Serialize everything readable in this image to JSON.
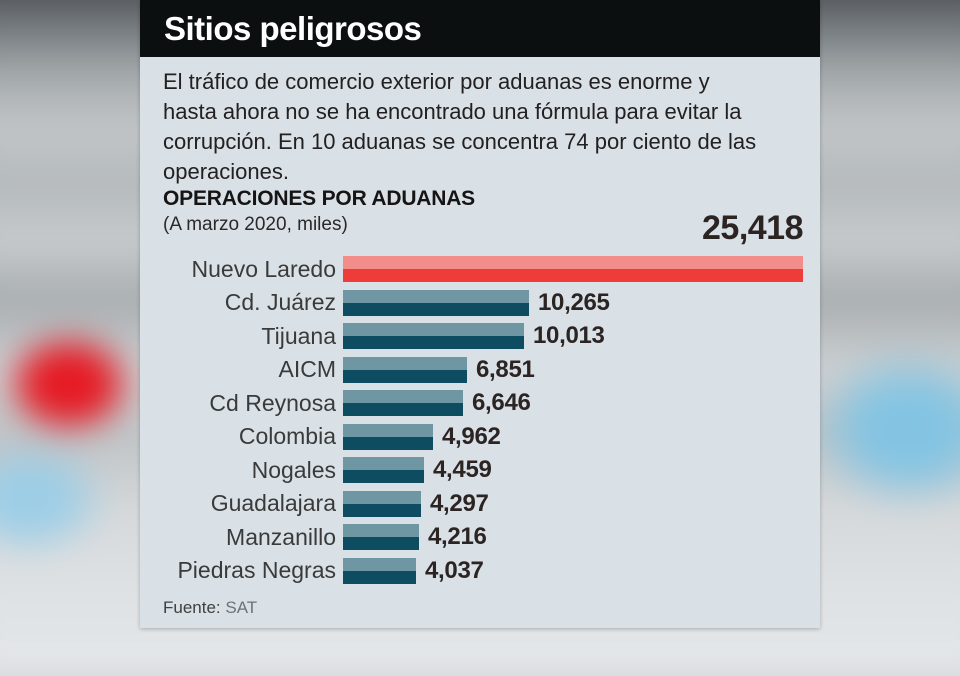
{
  "header": {
    "title": "Sitios peligrosos"
  },
  "intro": {
    "text": "El tráfico de comercio exterior por aduanas es enorme y hasta ahora no se ha encontrado una fórmula para evitar la corrupción. En 10 aduanas se concentra 74 por ciento de las operaciones."
  },
  "chart": {
    "title": "OPERACIONES POR ADUANAS",
    "subtitle": "(A marzo 2020, miles)",
    "max_value_label": "25,418"
  },
  "footer": {
    "source_label": "Fuente:",
    "source": "SAT"
  },
  "colors": {
    "highlight_top": "#F28D89",
    "highlight_bottom": "#EE3C3A",
    "bar_top": "#6E96A3",
    "bar_bottom": "#0E4D61",
    "card_bg": "#D9E1E6",
    "header_bg": "#0B0F10"
  },
  "chart_data": {
    "type": "bar",
    "orientation": "horizontal",
    "title": "OPERACIONES POR ADUANAS",
    "subtitle": "(A marzo 2020, miles)",
    "categories": [
      "Nuevo Laredo",
      "Cd. Juárez",
      "Tijuana",
      "AICM",
      "Cd Reynosa",
      "Colombia",
      "Nogales",
      "Guadalajara",
      "Manzanillo",
      "Piedras Negras"
    ],
    "values": [
      25418,
      10265,
      10013,
      6851,
      6646,
      4962,
      4459,
      4297,
      4216,
      4037
    ],
    "value_labels": [
      "25,418",
      "10,265",
      "10,013",
      "6,851",
      "6,646",
      "4,962",
      "4,459",
      "4,297",
      "4,216",
      "4,037"
    ],
    "highlight_index": 0,
    "xlim": [
      0,
      25418
    ],
    "legend": [],
    "grid": false,
    "source": "Fuente: SAT"
  }
}
